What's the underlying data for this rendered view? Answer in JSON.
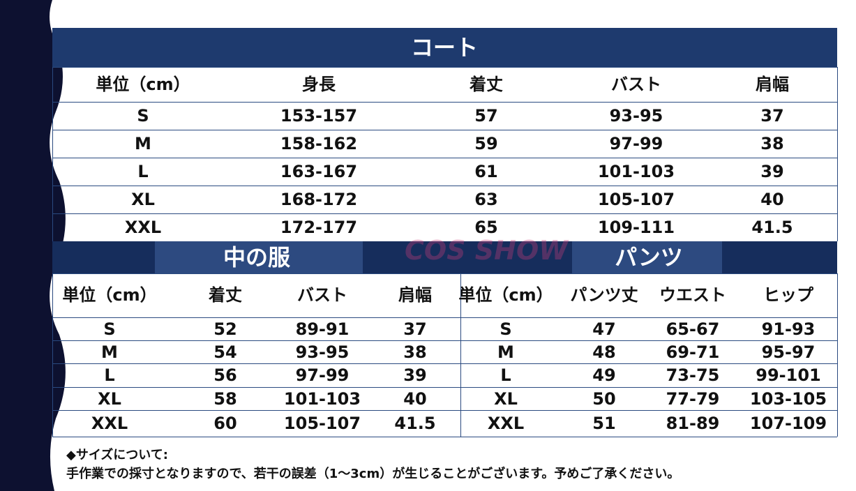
{
  "coat": {
    "title": "コート",
    "headers": [
      "単位（cm）",
      "身長",
      "着丈",
      "バスト",
      "肩幅"
    ],
    "rows": [
      [
        "S",
        "153-157",
        "57",
        "93-95",
        "37"
      ],
      [
        "M",
        "158-162",
        "59",
        "97-99",
        "38"
      ],
      [
        "L",
        "163-167",
        "61",
        "101-103",
        "39"
      ],
      [
        "XL",
        "168-172",
        "63",
        "105-107",
        "40"
      ],
      [
        "XXL",
        "172-177",
        "65",
        "109-111",
        "41.5"
      ]
    ]
  },
  "inner": {
    "title": "中の服",
    "headers": [
      "単位（cm）",
      "着丈",
      "バスト",
      "肩幅"
    ],
    "rows": [
      [
        "S",
        "52",
        "89-91",
        "37"
      ],
      [
        "M",
        "54",
        "93-95",
        "38"
      ],
      [
        "L",
        "56",
        "97-99",
        "39"
      ],
      [
        "XL",
        "58",
        "101-103",
        "40"
      ],
      [
        "XXL",
        "60",
        "105-107",
        "41.5"
      ]
    ]
  },
  "pants": {
    "title": "パンツ",
    "headers": [
      "単位（cm）",
      "パンツ丈",
      "ウエスト",
      "ヒップ"
    ],
    "rows": [
      [
        "S",
        "47",
        "65-67",
        "91-93"
      ],
      [
        "M",
        "48",
        "69-71",
        "95-97"
      ],
      [
        "L",
        "49",
        "73-75",
        "99-101"
      ],
      [
        "XL",
        "50",
        "77-79",
        "103-105"
      ],
      [
        "XXL",
        "51",
        "81-89",
        "107-109"
      ]
    ]
  },
  "watermark": "COS SHOW",
  "note": {
    "heading": "◆サイズについて:",
    "text": "手作業での採寸となりますので、若干の誤差（1～3cm）が生じることがございます。予めご了承ください。"
  }
}
